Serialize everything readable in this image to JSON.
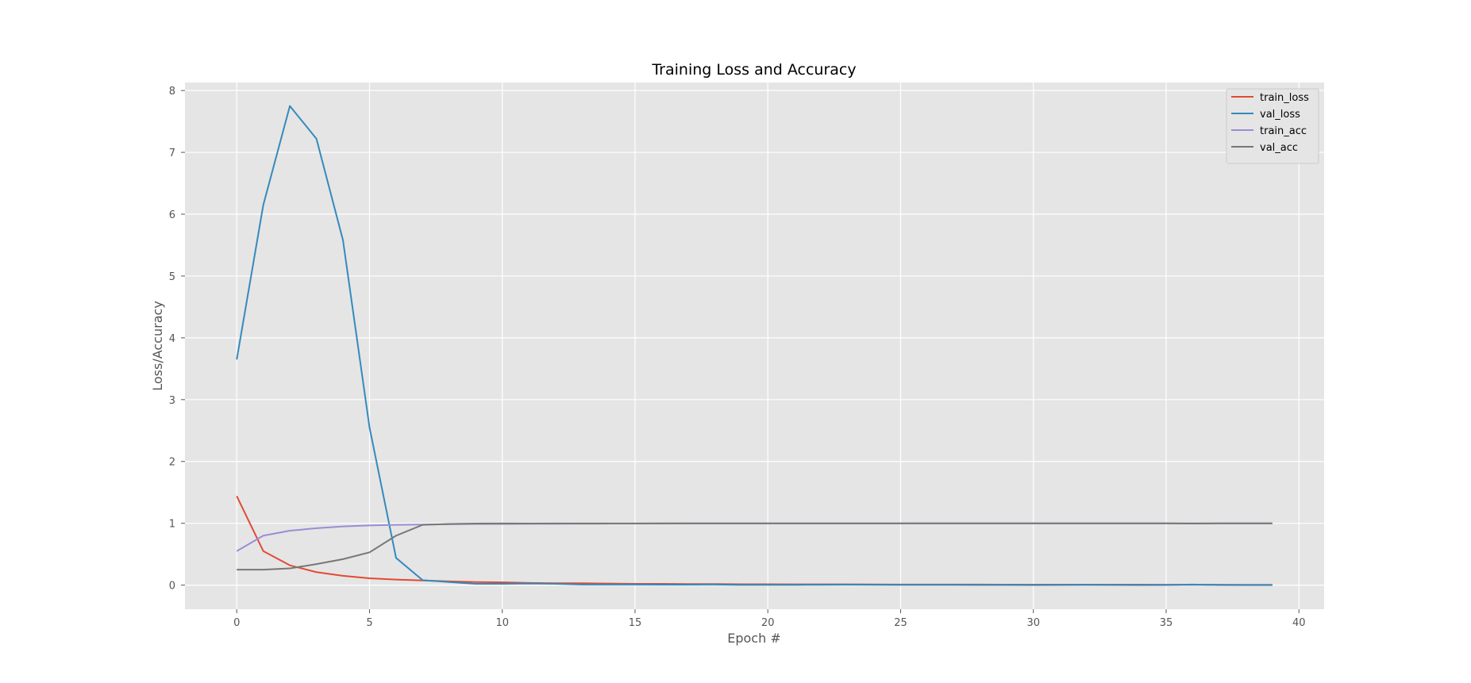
{
  "chart_data": {
    "type": "line",
    "title": "Training Loss and Accuracy",
    "xlabel": "Epoch #",
    "ylabel": "Loss/Accuracy",
    "xlim": [
      -1.95,
      40.95
    ],
    "ylim": [
      -0.39,
      8.13
    ],
    "xticks": [
      0,
      5,
      10,
      15,
      20,
      25,
      30,
      35,
      40
    ],
    "yticks": [
      0,
      1,
      2,
      3,
      4,
      5,
      6,
      7,
      8
    ],
    "grid": true,
    "legend_position": "top-right",
    "x": [
      0,
      1,
      2,
      3,
      4,
      5,
      6,
      7,
      8,
      9,
      10,
      11,
      12,
      13,
      14,
      15,
      16,
      17,
      18,
      19,
      20,
      21,
      22,
      23,
      24,
      25,
      26,
      27,
      28,
      29,
      30,
      31,
      32,
      33,
      34,
      35,
      36,
      37,
      38,
      39
    ],
    "series": [
      {
        "name": "train_loss",
        "color": "#E24A33",
        "values": [
          1.44,
          0.55,
          0.32,
          0.21,
          0.15,
          0.11,
          0.09,
          0.075,
          0.06,
          0.05,
          0.045,
          0.035,
          0.03,
          0.03,
          0.025,
          0.02,
          0.02,
          0.018,
          0.017,
          0.015,
          0.014,
          0.013,
          0.012,
          0.012,
          0.011,
          0.01,
          0.01,
          0.009,
          0.009,
          0.008,
          0.008,
          0.008,
          0.007,
          0.007,
          0.007,
          0.006,
          0.006,
          0.006,
          0.005,
          0.005
        ]
      },
      {
        "name": "val_loss",
        "color": "#348ABD",
        "values": [
          3.65,
          6.15,
          7.75,
          7.22,
          5.58,
          2.55,
          0.44,
          0.08,
          0.05,
          0.02,
          0.02,
          0.025,
          0.02,
          0.01,
          0.01,
          0.01,
          0.008,
          0.008,
          0.009,
          0.005,
          0.005,
          0.005,
          0.006,
          0.007,
          0.006,
          0.005,
          0.004,
          0.004,
          0.003,
          0.003,
          0.002,
          0.003,
          0.004,
          0.003,
          0.002,
          0.003,
          0.01,
          0.003,
          0.002,
          0.002
        ]
      },
      {
        "name": "train_acc",
        "color": "#988ED5",
        "values": [
          0.55,
          0.8,
          0.88,
          0.92,
          0.95,
          0.965,
          0.975,
          0.98,
          0.985,
          0.99,
          0.99,
          0.992,
          0.993,
          0.994,
          0.995,
          0.996,
          0.996,
          0.997,
          0.997,
          0.997,
          0.998,
          0.998,
          0.998,
          0.998,
          0.998,
          0.998,
          0.999,
          0.999,
          0.999,
          0.999,
          0.999,
          0.999,
          0.999,
          0.999,
          0.999,
          0.999,
          0.999,
          0.999,
          0.999,
          0.999
        ]
      },
      {
        "name": "val_acc",
        "color": "#777777",
        "values": [
          0.25,
          0.25,
          0.27,
          0.34,
          0.42,
          0.53,
          0.8,
          0.975,
          0.99,
          0.995,
          0.997,
          0.996,
          0.997,
          0.998,
          0.998,
          0.998,
          0.999,
          0.999,
          0.999,
          0.999,
          0.999,
          0.999,
          0.999,
          0.999,
          0.999,
          0.999,
          0.999,
          0.999,
          0.999,
          0.999,
          0.999,
          0.999,
          0.999,
          0.999,
          0.999,
          0.999,
          0.996,
          0.999,
          0.999,
          0.999
        ]
      }
    ]
  }
}
